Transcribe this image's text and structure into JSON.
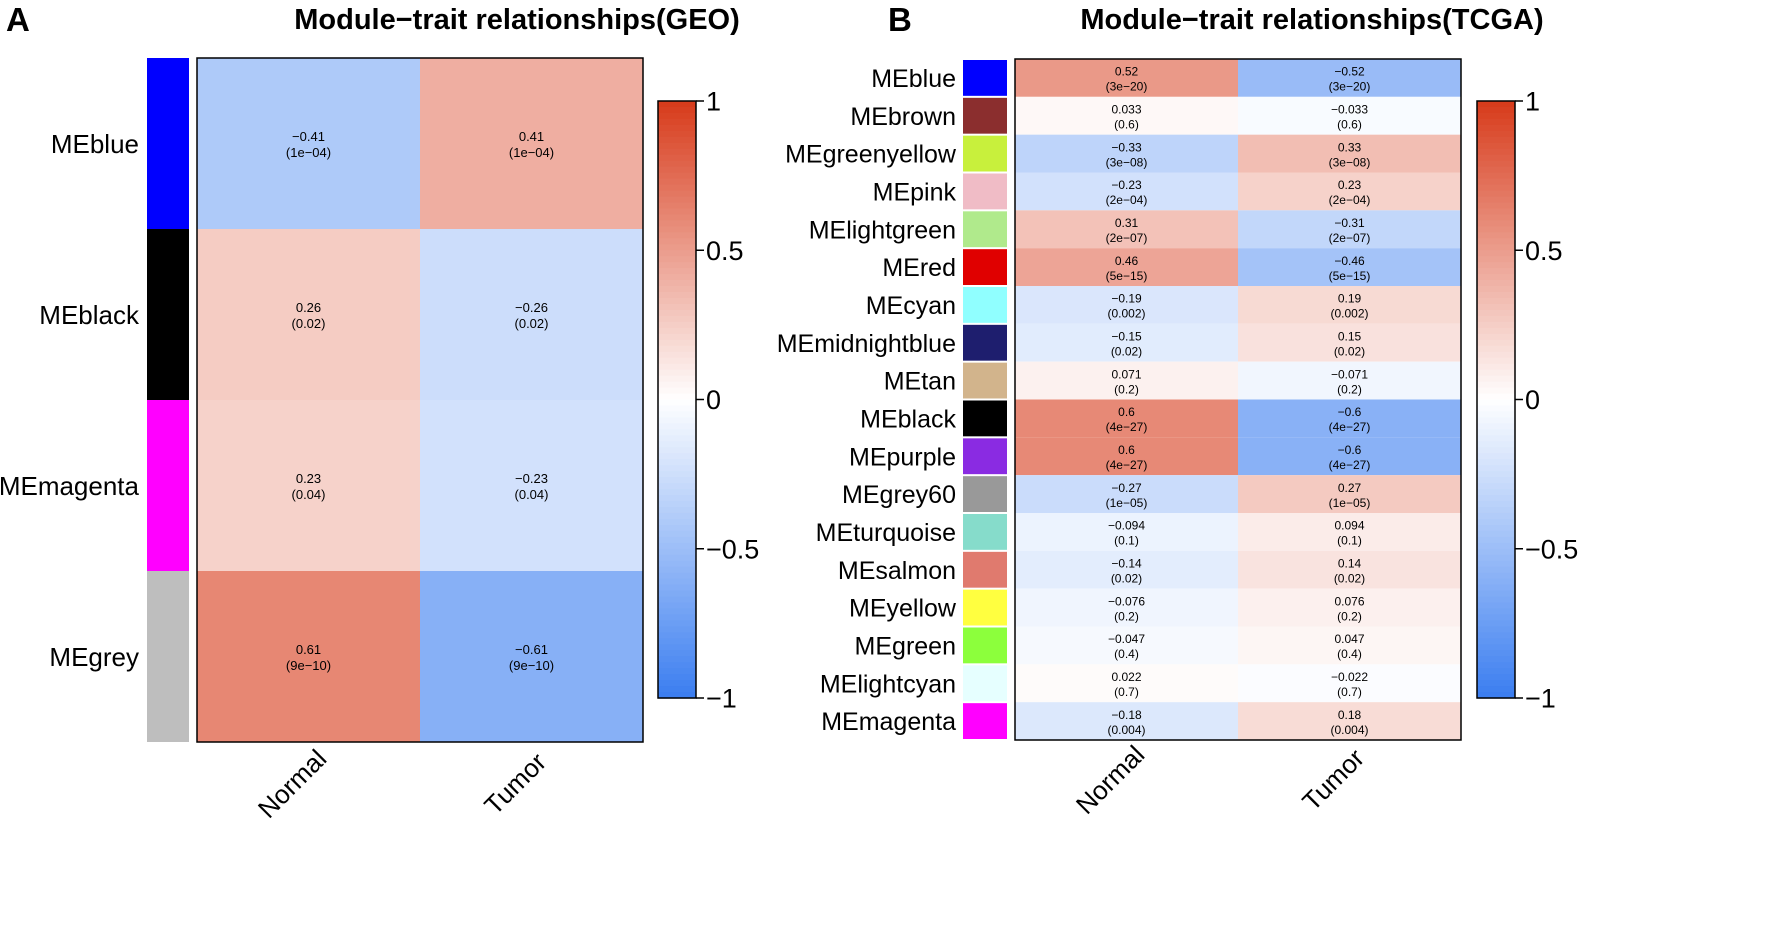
{
  "chart_data": [
    {
      "panel": "A",
      "type": "heatmap",
      "title": "Module−trait relationships(GEO)",
      "traits": [
        "Normal",
        "Tumor"
      ],
      "modules": [
        {
          "name": "MEblue",
          "color": "#0000FF",
          "corr": [
            -0.41,
            0.41
          ],
          "corr_labels": [
            "−0.41",
            "0.41"
          ],
          "p": [
            "(1e−04)",
            "(1e−04)"
          ]
        },
        {
          "name": "MEblack",
          "color": "#000000",
          "corr": [
            0.26,
            -0.26
          ],
          "corr_labels": [
            "0.26",
            "−0.26"
          ],
          "p": [
            "(0.02)",
            "(0.02)"
          ]
        },
        {
          "name": "MEmagenta",
          "color": "#FF00FF",
          "corr": [
            0.23,
            -0.23
          ],
          "corr_labels": [
            "0.23",
            "−0.23"
          ],
          "p": [
            "(0.04)",
            "(0.04)"
          ]
        },
        {
          "name": "MEgrey",
          "color": "#BEBEBE",
          "corr": [
            0.61,
            -0.61
          ],
          "corr_labels": [
            "0.61",
            "−0.61"
          ],
          "p": [
            "(9e−10)",
            "(9e−10)"
          ]
        }
      ],
      "legend": {
        "range": [
          -1,
          1
        ],
        "ticks": [
          "1",
          "0.5",
          "0",
          "−0.5",
          "−1"
        ]
      }
    },
    {
      "panel": "B",
      "type": "heatmap",
      "title": "Module−trait relationships(TCGA)",
      "traits": [
        "Normal",
        "Tumor"
      ],
      "modules": [
        {
          "name": "MEblue",
          "color": "#0000FF",
          "corr": [
            0.52,
            -0.52
          ],
          "corr_labels": [
            "0.52",
            "−0.52"
          ],
          "p": [
            "(3e−20)",
            "(3e−20)"
          ]
        },
        {
          "name": "MEbrown",
          "color": "#8B2E2E",
          "corr": [
            0.033,
            -0.033
          ],
          "corr_labels": [
            "0.033",
            "−0.033"
          ],
          "p": [
            "(0.6)",
            "(0.6)"
          ]
        },
        {
          "name": "MEgreenyellow",
          "color": "#C8F03C",
          "corr": [
            -0.33,
            0.33
          ],
          "corr_labels": [
            "−0.33",
            "0.33"
          ],
          "p": [
            "(3e−08)",
            "(3e−08)"
          ]
        },
        {
          "name": "MEpink",
          "color": "#F0BCC6",
          "corr": [
            -0.23,
            0.23
          ],
          "corr_labels": [
            "−0.23",
            "0.23"
          ],
          "p": [
            "(2e−04)",
            "(2e−04)"
          ]
        },
        {
          "name": "MElightgreen",
          "color": "#B0EA8C",
          "corr": [
            0.31,
            -0.31
          ],
          "corr_labels": [
            "0.31",
            "−0.31"
          ],
          "p": [
            "(2e−07)",
            "(2e−07)"
          ]
        },
        {
          "name": "MEred",
          "color": "#E00000",
          "corr": [
            0.46,
            -0.46
          ],
          "corr_labels": [
            "0.46",
            "−0.46"
          ],
          "p": [
            "(5e−15)",
            "(5e−15)"
          ]
        },
        {
          "name": "MEcyan",
          "color": "#90FFFF",
          "corr": [
            -0.19,
            0.19
          ],
          "corr_labels": [
            "−0.19",
            "0.19"
          ],
          "p": [
            "(0.002)",
            "(0.002)"
          ]
        },
        {
          "name": "MEmidnightblue",
          "color": "#1E1E6E",
          "corr": [
            -0.15,
            0.15
          ],
          "corr_labels": [
            "−0.15",
            "0.15"
          ],
          "p": [
            "(0.02)",
            "(0.02)"
          ]
        },
        {
          "name": "MEtan",
          "color": "#D2B48C",
          "corr": [
            0.071,
            -0.071
          ],
          "corr_labels": [
            "0.071",
            "−0.071"
          ],
          "p": [
            "(0.2)",
            "(0.2)"
          ]
        },
        {
          "name": "MEblack",
          "color": "#000000",
          "corr": [
            0.6,
            -0.6
          ],
          "corr_labels": [
            "0.6",
            "−0.6"
          ],
          "p": [
            "(4e−27)",
            "(4e−27)"
          ]
        },
        {
          "name": "MEpurple",
          "color": "#8A2BE2",
          "corr": [
            0.6,
            -0.6
          ],
          "corr_labels": [
            "0.6",
            "−0.6"
          ],
          "p": [
            "(4e−27)",
            "(4e−27)"
          ]
        },
        {
          "name": "MEgrey60",
          "color": "#999999",
          "corr": [
            -0.27,
            0.27
          ],
          "corr_labels": [
            "−0.27",
            "0.27"
          ],
          "p": [
            "(1e−05)",
            "(1e−05)"
          ]
        },
        {
          "name": "MEturquoise",
          "color": "#86DCCB",
          "corr": [
            -0.094,
            0.094
          ],
          "corr_labels": [
            "−0.094",
            "0.094"
          ],
          "p": [
            "(0.1)",
            "(0.1)"
          ]
        },
        {
          "name": "MEsalmon",
          "color": "#E07A6E",
          "corr": [
            -0.14,
            0.14
          ],
          "corr_labels": [
            "−0.14",
            "0.14"
          ],
          "p": [
            "(0.02)",
            "(0.02)"
          ]
        },
        {
          "name": "MEyellow",
          "color": "#FFFF40",
          "corr": [
            -0.076,
            0.076
          ],
          "corr_labels": [
            "−0.076",
            "0.076"
          ],
          "p": [
            "(0.2)",
            "(0.2)"
          ]
        },
        {
          "name": "MEgreen",
          "color": "#8CFF3C",
          "corr": [
            -0.047,
            0.047
          ],
          "corr_labels": [
            "−0.047",
            "0.047"
          ],
          "p": [
            "(0.4)",
            "(0.4)"
          ]
        },
        {
          "name": "MElightcyan",
          "color": "#E6FFFF",
          "corr": [
            0.022,
            -0.022
          ],
          "corr_labels": [
            "0.022",
            "−0.022"
          ],
          "p": [
            "(0.7)",
            "(0.7)"
          ]
        },
        {
          "name": "MEmagenta",
          "color": "#FF00FF",
          "corr": [
            -0.18,
            0.18
          ],
          "corr_labels": [
            "−0.18",
            "0.18"
          ],
          "p": [
            "(0.004)",
            "(0.004)"
          ]
        }
      ],
      "legend": {
        "range": [
          -1,
          1
        ],
        "ticks": [
          "1",
          "0.5",
          "0",
          "−0.5",
          "−1"
        ]
      }
    }
  ],
  "colors": {
    "neg": "#3A7DF0",
    "zero": "#FFFFFF",
    "pos": "#D73A1A"
  }
}
